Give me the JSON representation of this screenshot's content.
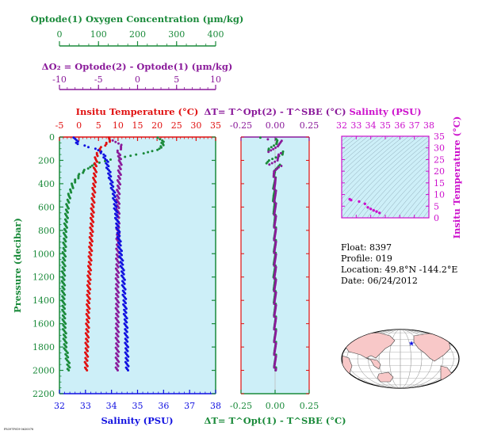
{
  "colors": {
    "oxygen": "#1a8a3a",
    "delta_o2": "#8a1a9a",
    "temperature": "#e01010",
    "salinity": "#1010e0",
    "delta_t": "#1a8a3a",
    "ts_salinity": "#cc10cc",
    "ts_temperature": "#cc10cc",
    "panel_bg": "#cdeff8",
    "land": "#f8c8c8",
    "ocean": "#ffffff"
  },
  "info": {
    "float": "Float:  8397",
    "profile": "Profile:  019",
    "location": "Location:  49.8°N  -144.2°E",
    "date": "Date:  06/24/2012"
  },
  "footer_id": "F8397P019-0630078",
  "chart_data": [
    {
      "type": "line",
      "panel": "profiles",
      "xlabel_top_oxygen": "Optode(1) Oxygen Concentration (µm/kg)",
      "oxygen_ticks": [
        "0",
        "100",
        "200",
        "300",
        "400"
      ],
      "oxygen_range": [
        0,
        400
      ],
      "xlabel_top_delta": "ΔO₂ = Optode(2) - Optode(1)     (µm/kg)",
      "delta_ticks": [
        "-10",
        "-5",
        "0",
        "5",
        "10"
      ],
      "delta_range": [
        -10,
        10
      ],
      "xlabel_temperature": "Insitu Temperature (°C)",
      "temperature_ticks": [
        "-5",
        "0",
        "5",
        "10",
        "15",
        "20",
        "25",
        "30",
        "35"
      ],
      "temperature_range": [
        -5,
        35
      ],
      "xlabel_salinity": "Salinity (PSU)",
      "salinity_ticks": [
        "32",
        "33",
        "34",
        "35",
        "36",
        "37",
        "38"
      ],
      "salinity_range": [
        32,
        38
      ],
      "ylabel": "Pressure (decibar)",
      "pressure_ticks": [
        "0",
        "200",
        "400",
        "600",
        "800",
        "1000",
        "1200",
        "1400",
        "1600",
        "1800",
        "2000",
        "2200"
      ],
      "pressure_range": [
        0,
        2200
      ],
      "series": [
        {
          "key": "oxygen",
          "axis": "oxygen",
          "points": [
            [
              255,
              5
            ],
            [
              262,
              30
            ],
            [
              265,
              60
            ],
            [
              262,
              90
            ],
            [
              240,
              120
            ],
            [
              200,
              150
            ],
            [
              150,
              180
            ],
            [
              100,
              220
            ],
            [
              70,
              270
            ],
            [
              50,
              330
            ],
            [
              35,
              400
            ],
            [
              25,
              500
            ],
            [
              20,
              600
            ],
            [
              15,
              800
            ],
            [
              12,
              1000
            ],
            [
              10,
              1200
            ],
            [
              10,
              1400
            ],
            [
              12,
              1600
            ],
            [
              15,
              1800
            ],
            [
              20,
              1900
            ],
            [
              25,
              2000
            ]
          ]
        },
        {
          "key": "delta_o2",
          "axis": "delta",
          "points": [
            [
              -3,
              30
            ],
            [
              -2,
              80
            ],
            [
              -2.5,
              130
            ],
            [
              -2.2,
              200
            ],
            [
              -2.3,
              300
            ],
            [
              -2.5,
              500
            ],
            [
              -2.5,
              800
            ],
            [
              -2.6,
              1200
            ],
            [
              -2.6,
              1600
            ],
            [
              -2.6,
              2000
            ]
          ]
        },
        {
          "key": "temperature",
          "axis": "temperature",
          "points": [
            [
              8,
              5
            ],
            [
              7.8,
              30
            ],
            [
              7,
              60
            ],
            [
              5.5,
              100
            ],
            [
              4.6,
              150
            ],
            [
              4.3,
              200
            ],
            [
              4.1,
              300
            ],
            [
              3.9,
              400
            ],
            [
              3.7,
              500
            ],
            [
              3.5,
              600
            ],
            [
              3.2,
              800
            ],
            [
              2.9,
              1000
            ],
            [
              2.6,
              1200
            ],
            [
              2.4,
              1400
            ],
            [
              2.2,
              1600
            ],
            [
              2.0,
              1800
            ],
            [
              1.8,
              2000
            ]
          ]
        },
        {
          "key": "salinity",
          "axis": "salinity",
          "points": [
            [
              32.6,
              5
            ],
            [
              32.7,
              60
            ],
            [
              33.4,
              100
            ],
            [
              33.7,
              150
            ],
            [
              33.8,
              200
            ],
            [
              33.9,
              300
            ],
            [
              34.0,
              400
            ],
            [
              34.1,
              500
            ],
            [
              34.15,
              600
            ],
            [
              34.25,
              800
            ],
            [
              34.35,
              1000
            ],
            [
              34.45,
              1200
            ],
            [
              34.5,
              1400
            ],
            [
              34.55,
              1600
            ],
            [
              34.58,
              1800
            ],
            [
              34.6,
              2000
            ]
          ]
        }
      ]
    },
    {
      "type": "line",
      "panel": "delta_t",
      "xlabel_top": "ΔT= T^Opt(2) - T^SBE (°C)",
      "xlabel_bottom": "ΔT= T^Opt(1) - T^SBE (°C)",
      "x_ticks": [
        "-0.25",
        "0.00",
        "0.25"
      ],
      "x_range": [
        -0.25,
        0.25
      ],
      "series": [
        {
          "key": "delta_t",
          "points": [
            [
              -0.06,
              5
            ],
            [
              -0.02,
              30
            ],
            [
              0.01,
              60
            ],
            [
              -0.01,
              100
            ],
            [
              0.03,
              150
            ],
            [
              -0.02,
              200
            ],
            [
              0.0,
              300
            ],
            [
              -0.01,
              500
            ],
            [
              0.0,
              800
            ],
            [
              -0.005,
              1200
            ],
            [
              0.0,
              1600
            ],
            [
              0.0,
              2000
            ]
          ]
        },
        {
          "key": "delta_o2",
          "points": [
            [
              -0.005,
              20
            ],
            [
              0.02,
              80
            ],
            [
              -0.01,
              150
            ],
            [
              0.03,
              200
            ],
            [
              -0.01,
              260
            ],
            [
              0.0,
              400
            ],
            [
              0.0,
              800
            ],
            [
              0.0,
              1200
            ],
            [
              0.0,
              1600
            ],
            [
              0.0,
              2000
            ]
          ]
        }
      ]
    },
    {
      "type": "scatter",
      "panel": "ts_diagram",
      "xlabel": "Salinity (PSU)",
      "x_ticks": [
        "32",
        "33",
        "34",
        "35",
        "36",
        "37",
        "38"
      ],
      "x_range": [
        32,
        38
      ],
      "ylabel": "Insitu Temperature (°C)",
      "y_ticks": [
        "0",
        "5",
        "10",
        "15",
        "20",
        "25",
        "30",
        "35"
      ],
      "y_range": [
        0,
        35
      ],
      "series": [
        {
          "key": "ts_salinity",
          "points": [
            [
              32.55,
              8
            ],
            [
              32.65,
              7.6
            ],
            [
              33.2,
              7
            ],
            [
              33.6,
              6
            ],
            [
              33.8,
              4.5
            ],
            [
              34.0,
              3.8
            ],
            [
              34.2,
              3.2
            ],
            [
              34.4,
              2.7
            ],
            [
              34.6,
              2.1
            ]
          ]
        }
      ]
    },
    {
      "type": "map",
      "panel": "world_map",
      "marker": {
        "lat": 49.8,
        "lon": -144.2
      }
    }
  ]
}
